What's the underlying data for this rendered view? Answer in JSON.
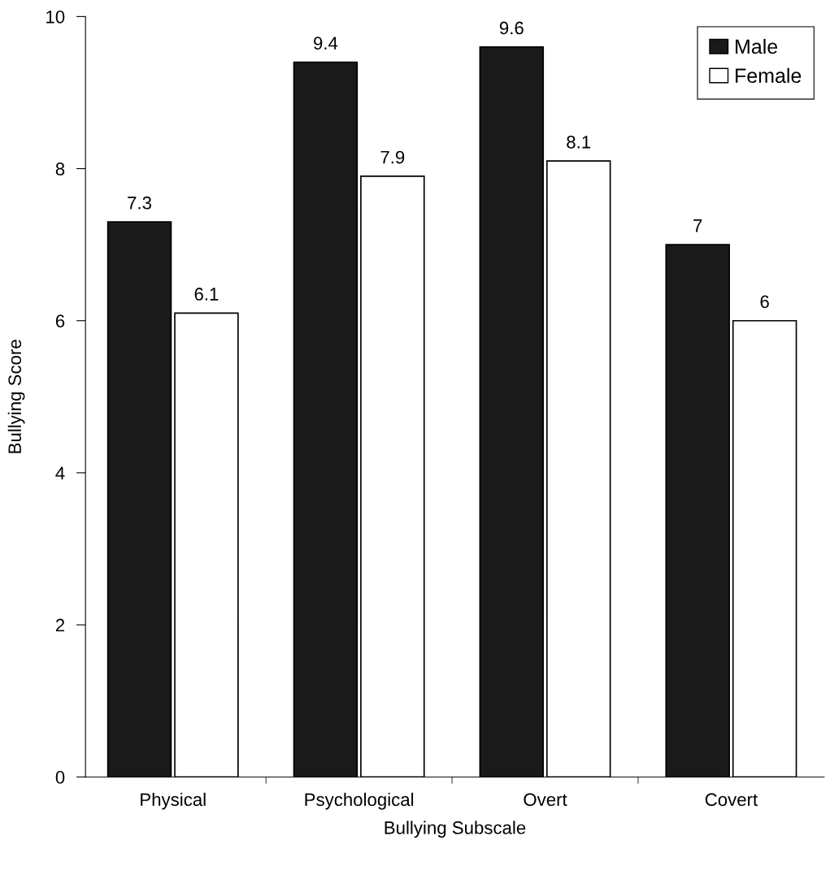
{
  "chart_data": {
    "type": "bar",
    "xlabel": "Bullying Subscale",
    "ylabel": "Bullying Score",
    "categories": [
      "Physical",
      "Psychological",
      "Overt",
      "Covert"
    ],
    "series": [
      {
        "name": "Male",
        "color": "#1a1a1a",
        "values": [
          7.3,
          9.4,
          9.6,
          7
        ]
      },
      {
        "name": "Female",
        "color": "#ffffff",
        "values": [
          6.1,
          7.9,
          8.1,
          6
        ]
      }
    ],
    "ylim": [
      0,
      10
    ],
    "yticks": [
      0,
      2,
      4,
      6,
      8,
      10
    ],
    "grid": false,
    "legend": "top right",
    "data_labels": true
  }
}
